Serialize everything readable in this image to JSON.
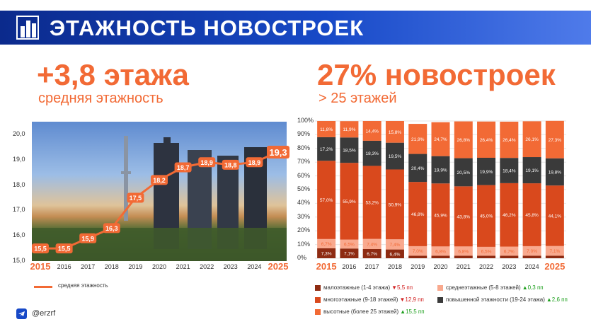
{
  "header": {
    "title": "ЭТАЖНОСТЬ НОВОСТРОЕК"
  },
  "left": {
    "headline": "+3,8 этажа",
    "subline": "средняя этажность",
    "legend": "средняя этажность"
  },
  "right": {
    "headline": "27% новостроек",
    "subline": "> 25 этажей"
  },
  "footer": {
    "handle": "@erzrf"
  },
  "colors": {
    "accent": "#f26a35",
    "brand": "#1749c7",
    "low": "#8e2b12",
    "mid": "#f9a98e",
    "high": "#f26a35",
    "upper": "#3a3a3a",
    "midrise": "#d9491d",
    "up": "#1ea01e",
    "down": "#d12020"
  },
  "chart_data": [
    {
      "type": "line",
      "x": [
        "2015",
        "2016",
        "2017",
        "2018",
        "2019",
        "2020",
        "2021",
        "2022",
        "2023",
        "2024",
        "2025"
      ],
      "highlight_x": [
        "2015",
        "2025"
      ],
      "series": [
        {
          "name": "средняя этажность",
          "values": [
            15.5,
            15.5,
            15.9,
            16.3,
            17.5,
            18.2,
            18.7,
            18.9,
            18.8,
            18.9,
            19.3
          ],
          "labels": [
            "15,5",
            "15,5",
            "15,9",
            "16,3",
            "17,5",
            "18,2",
            "18,7",
            "18,9",
            "18,8",
            "18,9",
            "19,3"
          ]
        }
      ],
      "y_ticks": [
        "20,0",
        "19,0",
        "18,0",
        "17,0",
        "16,0",
        "15,0"
      ],
      "ylim": [
        15,
        20.5
      ]
    },
    {
      "type": "bar",
      "stacked": true,
      "categories": [
        "2015",
        "2016",
        "2017",
        "2018",
        "2019",
        "2020",
        "2021",
        "2022",
        "2023",
        "2024",
        "2025"
      ],
      "highlight_categories": [
        "2015",
        "2025"
      ],
      "y_ticks": [
        "100%",
        "90%",
        "80%",
        "70%",
        "60%",
        "50%",
        "40%",
        "30%",
        "20%",
        "10%",
        "0%"
      ],
      "series": [
        {
          "name": "малоэтажные (1-4 этажа)",
          "values": [
            7.3,
            7.1,
            6.7,
            6.4,
            1.8,
            1.8,
            1.8,
            1.8,
            1.8,
            1.8,
            1.8
          ],
          "labels": [
            "7,3%",
            "7,1%",
            "6,7%",
            "6,4%",
            "",
            "",
            "",
            "",
            "",
            "",
            ""
          ]
        },
        {
          "name": "среднеэтажные (5-8 этажей)",
          "values": [
            6.7,
            6.5,
            7.4,
            7.4,
            7.0,
            6.8,
            6.8,
            6.5,
            6.7,
            7.0,
            7.1
          ],
          "labels": [
            "6,7%",
            "6,5%",
            "7,4%",
            "7,4%",
            "7,0%",
            "6,8%",
            "6,8%",
            "6,5%",
            "6,7%",
            "7,0%",
            "7,1%"
          ]
        },
        {
          "name": "многоэтажные (9-18 этажей)",
          "values": [
            57.0,
            55.9,
            53.2,
            50.9,
            46.8,
            45.9,
            43.8,
            45.0,
            46.2,
            45.8,
            44.1
          ],
          "labels": [
            "57,0%",
            "55,9%",
            "53,2%",
            "50,9%",
            "46,8%",
            "45,9%",
            "43,8%",
            "45,0%",
            "46,2%",
            "45,8%",
            "44,1%"
          ]
        },
        {
          "name": "повышенной этажности (19-24 этажа)",
          "values": [
            17.2,
            18.5,
            18.3,
            19.5,
            20.4,
            19.9,
            20.5,
            19.9,
            18.4,
            19.1,
            19.8
          ],
          "labels": [
            "17,2%",
            "18,5%",
            "18,3%",
            "19,5%",
            "20,4%",
            "19,9%",
            "20,5%",
            "19,9%",
            "18,4%",
            "19,1%",
            "19,8%"
          ]
        },
        {
          "name": "высотные (более 25 этажей)",
          "values": [
            11.8,
            11.9,
            14.4,
            15.8,
            21.9,
            24.7,
            26.8,
            26.4,
            26.4,
            26.1,
            27.3
          ],
          "labels": [
            "11,8%",
            "11,9%",
            "14,4%",
            "15,8%",
            "21,9%",
            "24,7%",
            "26,8%",
            "26,4%",
            "26,4%",
            "26,1%",
            "27,3%"
          ]
        }
      ],
      "legend": [
        {
          "name": "малоэтажные (1-4 этажа)",
          "delta": "▼5,5 пп",
          "dir": "down",
          "color": "low"
        },
        {
          "name": "среднеэтажные (5-8 этажей)",
          "delta": "▲0,3 пп",
          "dir": "up",
          "color": "mid"
        },
        {
          "name": "многоэтажные (9-18 этажей)",
          "delta": "▼12,9 пп",
          "dir": "down",
          "color": "midrise"
        },
        {
          "name": "повышенной этажности (19-24 этажа)",
          "delta": "▲2,6 пп",
          "dir": "up",
          "color": "upper"
        },
        {
          "name": "высотные (более 25 этажей)",
          "delta": "▲15,5 пп",
          "dir": "up",
          "color": "high"
        }
      ]
    }
  ]
}
